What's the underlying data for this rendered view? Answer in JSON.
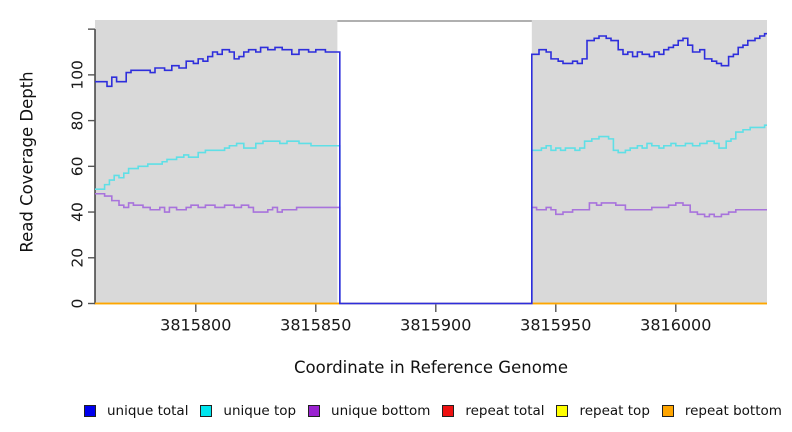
{
  "figure": {
    "background_color": "#ffffff"
  },
  "chart_data": {
    "type": "line",
    "line_style": "step",
    "title": "",
    "xlabel": "Coordinate in Reference Genome",
    "ylabel": "Read Coverage Depth",
    "xlim": [
      3815758,
      3816038
    ],
    "ylim": [
      0,
      124
    ],
    "grid": false,
    "legend_position": "bottom",
    "x_ticks": [
      3815800,
      3815850,
      3815900,
      3815950,
      3816000
    ],
    "y_ticks": [
      {
        "v": 0,
        "label": "0"
      },
      {
        "v": 20,
        "label": "20"
      },
      {
        "v": 40,
        "label": "40"
      },
      {
        "v": 60,
        "label": "60"
      },
      {
        "v": 80,
        "label": "80"
      },
      {
        "v": 100,
        "label": "100"
      },
      {
        "v": 120,
        "label": ""
      }
    ],
    "background_regions": [
      {
        "x0": 3815758,
        "x1": 3815859,
        "color": "#D9D9D9"
      },
      {
        "x0": 3815940,
        "x1": 3816038,
        "color": "#D9D9D9"
      }
    ],
    "colors": {
      "axis": "#333333",
      "tick": "#555555",
      "frame": "#808080",
      "tick_label": "#1a1a1a"
    },
    "series": [
      {
        "id": "repeat-total",
        "name": "repeat total",
        "color": "#DD1111",
        "points": [
          [
            3815758,
            0
          ],
          [
            3816037,
            0
          ]
        ]
      },
      {
        "id": "repeat-top",
        "name": "repeat top",
        "color": "#FFFF00",
        "points": [
          [
            3815758,
            0
          ],
          [
            3816037,
            0
          ]
        ]
      },
      {
        "id": "repeat-bottom",
        "name": "repeat bottom",
        "color": "#FFA500",
        "points": [
          [
            3815758,
            0
          ],
          [
            3816037,
            0
          ]
        ]
      },
      {
        "id": "unique-top",
        "name": "unique top",
        "color": "#5FDFE6",
        "points": [
          [
            3815758,
            50
          ],
          [
            3815762,
            52
          ],
          [
            3815764,
            54
          ],
          [
            3815766,
            56
          ],
          [
            3815768,
            55
          ],
          [
            3815770,
            57
          ],
          [
            3815772,
            59
          ],
          [
            3815776,
            60
          ],
          [
            3815780,
            61
          ],
          [
            3815786,
            62
          ],
          [
            3815788,
            63
          ],
          [
            3815792,
            64
          ],
          [
            3815795,
            65
          ],
          [
            3815797,
            64
          ],
          [
            3815801,
            66
          ],
          [
            3815804,
            67
          ],
          [
            3815812,
            68
          ],
          [
            3815814,
            69
          ],
          [
            3815817,
            70
          ],
          [
            3815820,
            68
          ],
          [
            3815825,
            70
          ],
          [
            3815828,
            71
          ],
          [
            3815835,
            70
          ],
          [
            3815838,
            71
          ],
          [
            3815843,
            70
          ],
          [
            3815848,
            69
          ],
          [
            3815856,
            69
          ],
          [
            3815860,
            0
          ],
          [
            3815940,
            67
          ],
          [
            3815944,
            68
          ],
          [
            3815946,
            69
          ],
          [
            3815948,
            67
          ],
          [
            3815950,
            68
          ],
          [
            3815952,
            67
          ],
          [
            3815954,
            68
          ],
          [
            3815958,
            67
          ],
          [
            3815960,
            68
          ],
          [
            3815962,
            71
          ],
          [
            3815965,
            72
          ],
          [
            3815968,
            73
          ],
          [
            3815972,
            72
          ],
          [
            3815974,
            67
          ],
          [
            3815976,
            66
          ],
          [
            3815979,
            67
          ],
          [
            3815981,
            68
          ],
          [
            3815984,
            69
          ],
          [
            3815986,
            68
          ],
          [
            3815988,
            70
          ],
          [
            3815990,
            69
          ],
          [
            3815993,
            68
          ],
          [
            3815995,
            69
          ],
          [
            3815998,
            70
          ],
          [
            3816000,
            69
          ],
          [
            3816004,
            70
          ],
          [
            3816007,
            69
          ],
          [
            3816010,
            70
          ],
          [
            3816013,
            71
          ],
          [
            3816016,
            70
          ],
          [
            3816018,
            68
          ],
          [
            3816021,
            71
          ],
          [
            3816023,
            72
          ],
          [
            3816025,
            75
          ],
          [
            3816028,
            76
          ],
          [
            3816031,
            77
          ],
          [
            3816037,
            78
          ]
        ]
      },
      {
        "id": "unique-bottom",
        "name": "unique bottom",
        "color": "#A873DC",
        "points": [
          [
            3815758,
            48
          ],
          [
            3815762,
            47
          ],
          [
            3815765,
            45
          ],
          [
            3815768,
            43
          ],
          [
            3815770,
            42
          ],
          [
            3815772,
            44
          ],
          [
            3815774,
            43
          ],
          [
            3815778,
            42
          ],
          [
            3815781,
            41
          ],
          [
            3815785,
            42
          ],
          [
            3815787,
            40
          ],
          [
            3815789,
            42
          ],
          [
            3815792,
            41
          ],
          [
            3815796,
            42
          ],
          [
            3815798,
            43
          ],
          [
            3815801,
            42
          ],
          [
            3815804,
            43
          ],
          [
            3815808,
            42
          ],
          [
            3815812,
            43
          ],
          [
            3815816,
            42
          ],
          [
            3815819,
            43
          ],
          [
            3815822,
            42
          ],
          [
            3815824,
            40
          ],
          [
            3815830,
            41
          ],
          [
            3815832,
            42
          ],
          [
            3815834,
            40
          ],
          [
            3815836,
            41
          ],
          [
            3815842,
            42
          ],
          [
            3815860,
            0
          ],
          [
            3815940,
            42
          ],
          [
            3815942,
            41
          ],
          [
            3815946,
            42
          ],
          [
            3815948,
            41
          ],
          [
            3815950,
            39
          ],
          [
            3815953,
            40
          ],
          [
            3815957,
            41
          ],
          [
            3815964,
            44
          ],
          [
            3815967,
            43
          ],
          [
            3815969,
            44
          ],
          [
            3815975,
            43
          ],
          [
            3815979,
            41
          ],
          [
            3815990,
            42
          ],
          [
            3815997,
            43
          ],
          [
            3816000,
            44
          ],
          [
            3816003,
            43
          ],
          [
            3816006,
            40
          ],
          [
            3816009,
            39
          ],
          [
            3816012,
            38
          ],
          [
            3816014,
            39
          ],
          [
            3816016,
            38
          ],
          [
            3816019,
            39
          ],
          [
            3816022,
            40
          ],
          [
            3816025,
            41
          ],
          [
            3816037,
            41
          ]
        ]
      },
      {
        "id": "unique-total",
        "name": "unique total",
        "color": "#2E2EDC",
        "points": [
          [
            3815758,
            97
          ],
          [
            3815763,
            95
          ],
          [
            3815765,
            99
          ],
          [
            3815767,
            97
          ],
          [
            3815771,
            101
          ],
          [
            3815773,
            102
          ],
          [
            3815781,
            101
          ],
          [
            3815783,
            103
          ],
          [
            3815787,
            102
          ],
          [
            3815790,
            104
          ],
          [
            3815793,
            103
          ],
          [
            3815796,
            106
          ],
          [
            3815799,
            105
          ],
          [
            3815801,
            107
          ],
          [
            3815803,
            106
          ],
          [
            3815805,
            108
          ],
          [
            3815807,
            110
          ],
          [
            3815809,
            109
          ],
          [
            3815811,
            111
          ],
          [
            3815814,
            110
          ],
          [
            3815816,
            107
          ],
          [
            3815818,
            108
          ],
          [
            3815820,
            110
          ],
          [
            3815822,
            111
          ],
          [
            3815825,
            110
          ],
          [
            3815827,
            112
          ],
          [
            3815830,
            111
          ],
          [
            3815833,
            112
          ],
          [
            3815836,
            111
          ],
          [
            3815840,
            109
          ],
          [
            3815843,
            111
          ],
          [
            3815847,
            110
          ],
          [
            3815850,
            111
          ],
          [
            3815854,
            110
          ],
          [
            3815860,
            0
          ],
          [
            3815940,
            109
          ],
          [
            3815943,
            111
          ],
          [
            3815946,
            110
          ],
          [
            3815948,
            107
          ],
          [
            3815951,
            106
          ],
          [
            3815953,
            105
          ],
          [
            3815957,
            106
          ],
          [
            3815959,
            105
          ],
          [
            3815961,
            107
          ],
          [
            3815963,
            115
          ],
          [
            3815966,
            116
          ],
          [
            3815968,
            117
          ],
          [
            3815971,
            116
          ],
          [
            3815973,
            115
          ],
          [
            3815976,
            111
          ],
          [
            3815978,
            109
          ],
          [
            3815980,
            110
          ],
          [
            3815982,
            108
          ],
          [
            3815984,
            110
          ],
          [
            3815986,
            109
          ],
          [
            3815989,
            108
          ],
          [
            3815991,
            110
          ],
          [
            3815993,
            109
          ],
          [
            3815995,
            111
          ],
          [
            3815997,
            112
          ],
          [
            3815999,
            113
          ],
          [
            3816001,
            115
          ],
          [
            3816003,
            116
          ],
          [
            3816005,
            113
          ],
          [
            3816007,
            110
          ],
          [
            3816010,
            111
          ],
          [
            3816012,
            107
          ],
          [
            3816015,
            106
          ],
          [
            3816017,
            105
          ],
          [
            3816019,
            104
          ],
          [
            3816022,
            108
          ],
          [
            3816024,
            109
          ],
          [
            3816026,
            112
          ],
          [
            3816028,
            113
          ],
          [
            3816030,
            115
          ],
          [
            3816033,
            116
          ],
          [
            3816035,
            117
          ],
          [
            3816037,
            118
          ]
        ]
      }
    ],
    "legend": [
      {
        "id": "unique-total",
        "label": "unique total",
        "fill": "#0000EE",
        "border": "#222222"
      },
      {
        "id": "unique-top",
        "label": "unique top",
        "fill": "#00E5EE",
        "border": "#222222"
      },
      {
        "id": "unique-bottom",
        "label": "unique bottom",
        "fill": "#9A22D0",
        "border": "#222222"
      },
      {
        "id": "repeat-total",
        "label": "repeat total",
        "fill": "#EE1111",
        "border": "#222222"
      },
      {
        "id": "repeat-top",
        "label": "repeat top",
        "fill": "#FFFF00",
        "border": "#222222"
      },
      {
        "id": "repeat-bottom",
        "label": "repeat bottom",
        "fill": "#FFA500",
        "border": "#222222"
      }
    ]
  }
}
